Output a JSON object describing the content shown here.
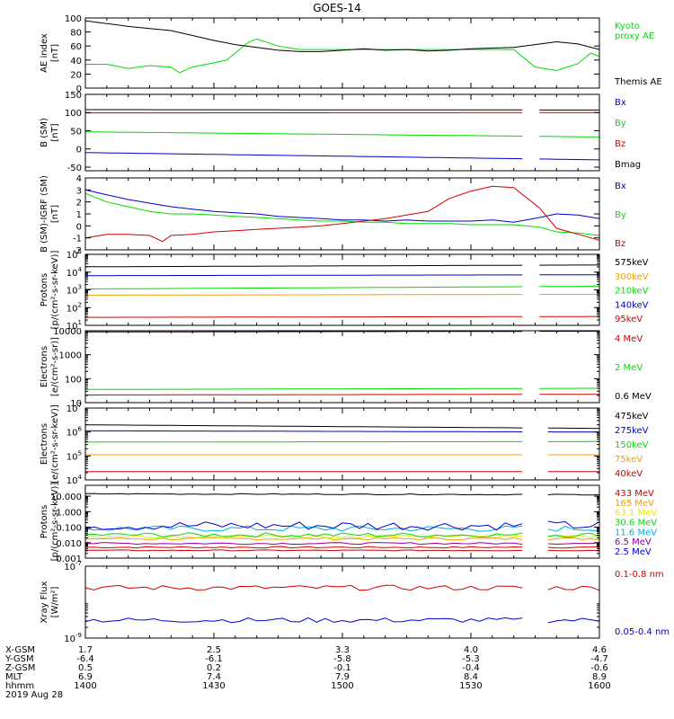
{
  "title": "GOES-14",
  "footer": {
    "row_labels": [
      "X-GSM",
      "Y-GSM",
      "Z-GSM",
      "MLT",
      "hhmm"
    ],
    "columns": [
      [
        "1.7",
        "-6.4",
        "0.5",
        "6.9",
        "1400"
      ],
      [
        "2.5",
        "-6.1",
        "0.2",
        "7.4",
        "1430"
      ],
      [
        "3.3",
        "-5.8",
        "-0.1",
        "7.9",
        "1500"
      ],
      [
        "4.0",
        "-5.3",
        "-0.4",
        "8.4",
        "1530"
      ],
      [
        "4.6",
        "-4.7",
        "-0.6",
        "8.9",
        "1600"
      ]
    ],
    "date": "2019 Aug 28"
  },
  "colors": {
    "black": "#000000",
    "red": "#d00000",
    "green": "#00dd00",
    "blue": "#0000cc",
    "orange": "#f0a000",
    "yellow": "#e8e800",
    "cyan": "#00b0e0",
    "purple": "#9000a0"
  },
  "chart_data": [
    {
      "type": "line",
      "ylabel": "AE index\n[nT]",
      "ylim": [
        0,
        100
      ],
      "log": false,
      "ticks": [
        0,
        20,
        40,
        60,
        80,
        100
      ],
      "tick_labels": [
        "0",
        "20",
        "40",
        "60",
        "80",
        "100"
      ],
      "legend": [
        "Kyoto\nproxy AE",
        "Themis AE"
      ],
      "series": [
        {
          "name": "Kyoto proxy AE",
          "color": "#00dd00",
          "x": [
            1400,
            1405,
            1410,
            1415,
            1420,
            1422,
            1425,
            1430,
            1433,
            1436,
            1438,
            1440,
            1445,
            1450,
            1455,
            1500,
            1505,
            1510,
            1515,
            1520,
            1525,
            1530,
            1535,
            1540,
            1545,
            1550,
            1555,
            1558,
            1600
          ],
          "y": [
            34,
            34,
            28,
            32,
            30,
            22,
            30,
            36,
            40,
            55,
            65,
            70,
            60,
            55,
            55,
            55,
            55,
            55,
            55,
            55,
            55,
            55,
            55,
            55,
            30,
            25,
            35,
            50,
            45
          ]
        },
        {
          "name": "Themis AE",
          "color": "#000000",
          "x": [
            1400,
            1405,
            1410,
            1415,
            1420,
            1425,
            1430,
            1435,
            1440,
            1445,
            1450,
            1455,
            1500,
            1505,
            1510,
            1515,
            1520,
            1525,
            1530,
            1535,
            1540,
            1545,
            1550,
            1555,
            1600
          ],
          "y": [
            96,
            92,
            88,
            85,
            82,
            75,
            68,
            62,
            58,
            54,
            52,
            52,
            54,
            56,
            54,
            55,
            53,
            54,
            56,
            57,
            58,
            62,
            66,
            63,
            55
          ]
        }
      ]
    },
    {
      "type": "line",
      "ylabel": "B (SM)\n[nT]",
      "ylim": [
        -60,
        150
      ],
      "log": false,
      "ticks": [
        -50,
        0,
        50,
        100,
        150
      ],
      "tick_labels": [
        "-50",
        "0",
        "50",
        "100",
        "150"
      ],
      "legend": [
        "Bx",
        "By",
        "Bz",
        "Bmag"
      ],
      "gap": [
        1542,
        1546
      ],
      "series": [
        {
          "name": "Bmag",
          "color": "#000000",
          "x": [
            1400,
            1600
          ],
          "y": [
            108,
            107
          ]
        },
        {
          "name": "Bz",
          "color": "#d00000",
          "x": [
            1400,
            1600
          ],
          "y": [
            99,
            100
          ]
        },
        {
          "name": "By",
          "color": "#00dd00",
          "x": [
            1400,
            1600
          ],
          "y": [
            47,
            33
          ]
        },
        {
          "name": "Bx",
          "color": "#0000cc",
          "x": [
            1400,
            1600
          ],
          "y": [
            -10,
            -30
          ]
        }
      ]
    },
    {
      "type": "line",
      "ylabel": "B (SM)-IGRF (SM)\n[nT]",
      "ylim": [
        -2,
        4
      ],
      "log": false,
      "ticks": [
        -2,
        -1,
        0,
        1,
        2,
        3,
        4
      ],
      "tick_labels": [
        "-2",
        "-1",
        "0",
        "1",
        "2",
        "3",
        "4"
      ],
      "legend": [
        "Bx",
        "By",
        "Bz"
      ],
      "gap": [
        1542,
        1546
      ],
      "series": [
        {
          "name": "Bx",
          "color": "#0000cc",
          "x": [
            1400,
            1405,
            1410,
            1415,
            1420,
            1425,
            1430,
            1435,
            1440,
            1445,
            1450,
            1455,
            1500,
            1505,
            1510,
            1515,
            1520,
            1525,
            1530,
            1535,
            1540,
            1546,
            1550,
            1555,
            1600
          ],
          "y": [
            3,
            2.6,
            2.2,
            1.9,
            1.6,
            1.4,
            1.2,
            1.1,
            1.0,
            0.8,
            0.7,
            0.6,
            0.5,
            0.5,
            0.4,
            0.5,
            0.4,
            0.4,
            0.4,
            0.5,
            0.3,
            0.7,
            1.0,
            0.9,
            0.6
          ]
        },
        {
          "name": "By",
          "color": "#00dd00",
          "x": [
            1400,
            1405,
            1410,
            1415,
            1420,
            1425,
            1430,
            1435,
            1440,
            1445,
            1450,
            1455,
            1500,
            1505,
            1510,
            1515,
            1520,
            1525,
            1530,
            1535,
            1540,
            1546,
            1550,
            1555,
            1600
          ],
          "y": [
            2.7,
            2.0,
            1.6,
            1.2,
            1.0,
            1.0,
            0.9,
            0.8,
            0.7,
            0.6,
            0.5,
            0.4,
            0.4,
            0.3,
            0.3,
            0.2,
            0.2,
            0.2,
            0.1,
            0.1,
            0.1,
            -0.1,
            -0.5,
            -0.6,
            -0.8
          ]
        },
        {
          "name": "Bz",
          "color": "#d00000",
          "x": [
            1400,
            1405,
            1410,
            1415,
            1418,
            1420,
            1425,
            1430,
            1435,
            1440,
            1445,
            1450,
            1455,
            1500,
            1505,
            1510,
            1515,
            1520,
            1525,
            1530,
            1535,
            1540,
            1546,
            1550,
            1555,
            1600
          ],
          "y": [
            -1.0,
            -0.7,
            -0.7,
            -0.8,
            -1.3,
            -0.8,
            -0.7,
            -0.5,
            -0.4,
            -0.3,
            -0.2,
            -0.1,
            0,
            0.2,
            0.4,
            0.6,
            0.9,
            1.2,
            2.3,
            2.9,
            3.3,
            3.2,
            1.5,
            -0.2,
            -0.7,
            -1.2
          ]
        }
      ]
    },
    {
      "type": "line",
      "ylabel": "Protons\n[p/(cm²-s-sr-keV)]",
      "ylim": [
        1,
        5
      ],
      "log": true,
      "ticks": [
        1,
        2,
        3,
        4,
        5
      ],
      "tick_labels": [
        "10",
        "10",
        "10",
        "10",
        "10"
      ],
      "tick_exp": [
        "1",
        "2",
        "3",
        "4",
        "5"
      ],
      "legend": [
        "575keV",
        "300keV",
        "210keV",
        "140keV",
        "95keV"
      ],
      "gap": [
        1542,
        1546
      ],
      "series": [
        {
          "name": "575keV",
          "color": "#000000",
          "x": [
            1400,
            1600
          ],
          "y": [
            4.3,
            4.4
          ]
        },
        {
          "name": "300keV",
          "color": "#f0a000",
          "x": [
            1400,
            1600
          ],
          "y": [
            2.7,
            2.75
          ]
        },
        {
          "name": "210keV",
          "color": "#00dd00",
          "x": [
            1400,
            1600
          ],
          "y": [
            3.05,
            3.2
          ]
        },
        {
          "name": "140keV",
          "color": "#0000cc",
          "x": [
            1400,
            1600
          ],
          "y": [
            3.8,
            3.85
          ]
        },
        {
          "name": "95keV",
          "color": "#d00000",
          "x": [
            1400,
            1600
          ],
          "y": [
            1.45,
            1.5
          ]
        }
      ]
    },
    {
      "type": "line",
      "ylabel": "Electrons\n[e/(cm²-s-sr)]",
      "ylim": [
        1,
        4
      ],
      "log": true,
      "ticks": [
        1,
        2,
        3,
        4
      ],
      "tick_labels": [
        "10",
        "100",
        "1000",
        "10000"
      ],
      "legend": [
        "4 MeV",
        "2 MeV",
        "0.6 MeV"
      ],
      "gap": [
        1542,
        1546
      ],
      "series": [
        {
          "name": "0.6 MeV",
          "color": "#000000",
          "x": [
            1400,
            1600
          ],
          "y": [
            3.95,
            3.98
          ]
        },
        {
          "name": "2 MeV",
          "color": "#00dd00",
          "x": [
            1400,
            1600
          ],
          "y": [
            1.55,
            1.6
          ]
        },
        {
          "name": "4 MeV",
          "color": "#d00000",
          "x": [
            1400,
            1600
          ],
          "y": [
            1.32,
            1.35
          ]
        }
      ]
    },
    {
      "type": "line",
      "ylabel": "Electrons\n[e/(cm²-s-sr-keV)]",
      "ylim": [
        4,
        7
      ],
      "log": true,
      "ticks": [
        4,
        5,
        6,
        7
      ],
      "tick_labels": [
        "10",
        "10",
        "10",
        "10"
      ],
      "tick_exp": [
        "4",
        "5",
        "6",
        "7"
      ],
      "legend": [
        "475keV",
        "275keV",
        "150keV",
        "75keV",
        "40keV"
      ],
      "gap": [
        1542,
        1548
      ],
      "series": [
        {
          "name": "475keV",
          "color": "#000000",
          "x": [
            1400,
            1600
          ],
          "y": [
            6.3,
            6.15
          ]
        },
        {
          "name": "275keV",
          "color": "#0000cc",
          "x": [
            1400,
            1600
          ],
          "y": [
            6.05,
            6.0
          ]
        },
        {
          "name": "150keV",
          "color": "#00dd00",
          "x": [
            1400,
            1600
          ],
          "y": [
            5.58,
            5.6
          ]
        },
        {
          "name": "75keV",
          "color": "#f0a000",
          "x": [
            1400,
            1600
          ],
          "y": [
            5.05,
            5.05
          ]
        },
        {
          "name": "40keV",
          "color": "#d00000",
          "x": [
            1400,
            1600
          ],
          "y": [
            4.35,
            4.35
          ]
        }
      ]
    },
    {
      "type": "line",
      "ylabel": "Protons\n[p/(cm²-s-sr-keV)]",
      "ylim": [
        -3,
        1.7
      ],
      "log": true,
      "ticks": [
        -3,
        -2,
        -1,
        0,
        1
      ],
      "tick_labels": [
        "0.001",
        "0.010",
        "0.100",
        "1.000",
        "10.000"
      ],
      "legend": [
        "433 MeV",
        "165 MeV",
        "63.1 MeV",
        "30.6 MeV",
        "11.6 MeV",
        "6.5 MeV",
        "2.5 MeV"
      ],
      "gap": [
        1542,
        1548
      ],
      "series": [
        {
          "name": "433 MeV",
          "color": "#d00000",
          "x": [
            1400,
            1600
          ],
          "y": [
            -2.3,
            -2.3
          ],
          "noise": 0.05
        },
        {
          "name": "165 MeV",
          "color": "#f0a000",
          "x": [
            1400,
            1600
          ],
          "y": [
            -1.75,
            -1.75
          ],
          "noise": 0.08
        },
        {
          "name": "63.1 MeV",
          "color": "#e8e800",
          "x": [
            1400,
            1600
          ],
          "y": [
            -1.6,
            -1.6
          ],
          "noise": 0.1
        },
        {
          "name": "30.6 MeV",
          "color": "#00dd00",
          "x": [
            1400,
            1600
          ],
          "y": [
            -1.5,
            -1.5
          ],
          "noise": 0.15
        },
        {
          "name": "11.6 MeV",
          "color": "#00b0e0",
          "x": [
            1400,
            1600
          ],
          "y": [
            -1.1,
            -1.1
          ],
          "noise": 0.2
        },
        {
          "name": "6.5 MeV",
          "color": "#9000a0",
          "x": [
            1400,
            1600
          ],
          "y": [
            -2.05,
            -2.05
          ],
          "noise": 0.06
        },
        {
          "name": "2.5 MeV",
          "color": "#0000cc",
          "x": [
            1400,
            1600
          ],
          "y": [
            -0.9,
            -0.9
          ],
          "noise": 0.3
        },
        {
          "name": "",
          "color": "#000000",
          "x": [
            1400,
            1600
          ],
          "y": [
            1.15,
            1.1
          ],
          "noise": 0.03
        },
        {
          "name": "",
          "color": "#d00000",
          "x": [
            1400,
            1600
          ],
          "y": [
            -2.5,
            -2.5
          ],
          "noise": 0.03
        }
      ]
    },
    {
      "type": "line",
      "ylabel": "Xray Flux\n[W/m²]",
      "ylim": [
        -9,
        -7
      ],
      "log": true,
      "ticks": [
        -9,
        -7
      ],
      "tick_labels": [
        "10",
        "10"
      ],
      "tick_exp": [
        "-9",
        "-7"
      ],
      "legend": [
        "0.1-0.8 nm",
        "0.05-0.4 nm"
      ],
      "gap": [
        1542,
        1548
      ],
      "series": [
        {
          "name": "0.1-0.8 nm",
          "color": "#d00000",
          "x": [
            1400,
            1600
          ],
          "y": [
            -7.6,
            -7.6
          ],
          "noise": 0.07
        },
        {
          "name": "0.05-0.4 nm",
          "color": "#0000cc",
          "x": [
            1400,
            1600
          ],
          "y": [
            -8.5,
            -8.5
          ],
          "noise": 0.07
        }
      ]
    }
  ]
}
